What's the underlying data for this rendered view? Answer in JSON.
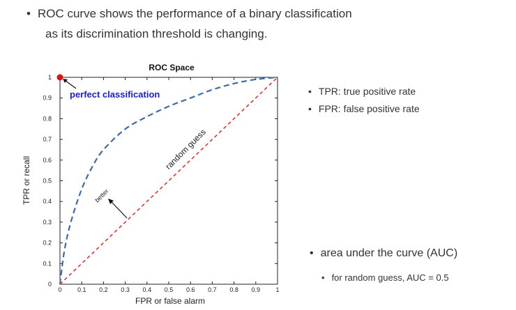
{
  "intro": {
    "bullet": "•",
    "line1": "ROC curve shows the performance of a binary classification",
    "line2": "as its discrimination threshold is changing."
  },
  "side_notes": {
    "bullet": "•",
    "items": [
      "TPR: true positive rate",
      "FPR: false positive rate"
    ]
  },
  "auc_note": {
    "bullet": "•",
    "title": "area under the curve (AUC)",
    "sub_bullet": "•",
    "sub": "for random guess, AUC = 0.5"
  },
  "chart_data": {
    "type": "line",
    "title": "ROC Space",
    "xlabel": "FPR or false alarm",
    "ylabel": "TPR or recall",
    "xlim": [
      0,
      1
    ],
    "ylim": [
      0,
      1
    ],
    "x_ticks": [
      "0",
      "0.1",
      "0.2",
      "0.3",
      "0.4",
      "0.5",
      "0.6",
      "0.7",
      "0.8",
      "0.9",
      "1"
    ],
    "y_ticks": [
      "0",
      "0.1",
      "0.2",
      "0.3",
      "0.4",
      "0.5",
      "0.6",
      "0.7",
      "0.8",
      "0.9",
      "1"
    ],
    "grid": false,
    "series": [
      {
        "style": "dashed",
        "color": "#3d6aa8",
        "x": [
          0,
          0.02,
          0.05,
          0.1,
          0.15,
          0.2,
          0.3,
          0.4,
          0.5,
          0.6,
          0.7,
          0.8,
          0.9,
          1.0
        ],
        "y": [
          0,
          0.16,
          0.3,
          0.46,
          0.57,
          0.65,
          0.75,
          0.81,
          0.86,
          0.9,
          0.94,
          0.97,
          0.99,
          1.0
        ]
      },
      {
        "style": "dashed",
        "color": "#e63030",
        "x": [
          0,
          1
        ],
        "y": [
          0,
          1
        ]
      }
    ],
    "points": [
      {
        "x": 0,
        "y": 1,
        "color": "#e01010"
      }
    ],
    "annotations": {
      "perfect": {
        "text": "perfect classification",
        "color": "#1a1ad8"
      },
      "random": {
        "text": "random guess"
      },
      "better": {
        "text": "better"
      }
    }
  }
}
